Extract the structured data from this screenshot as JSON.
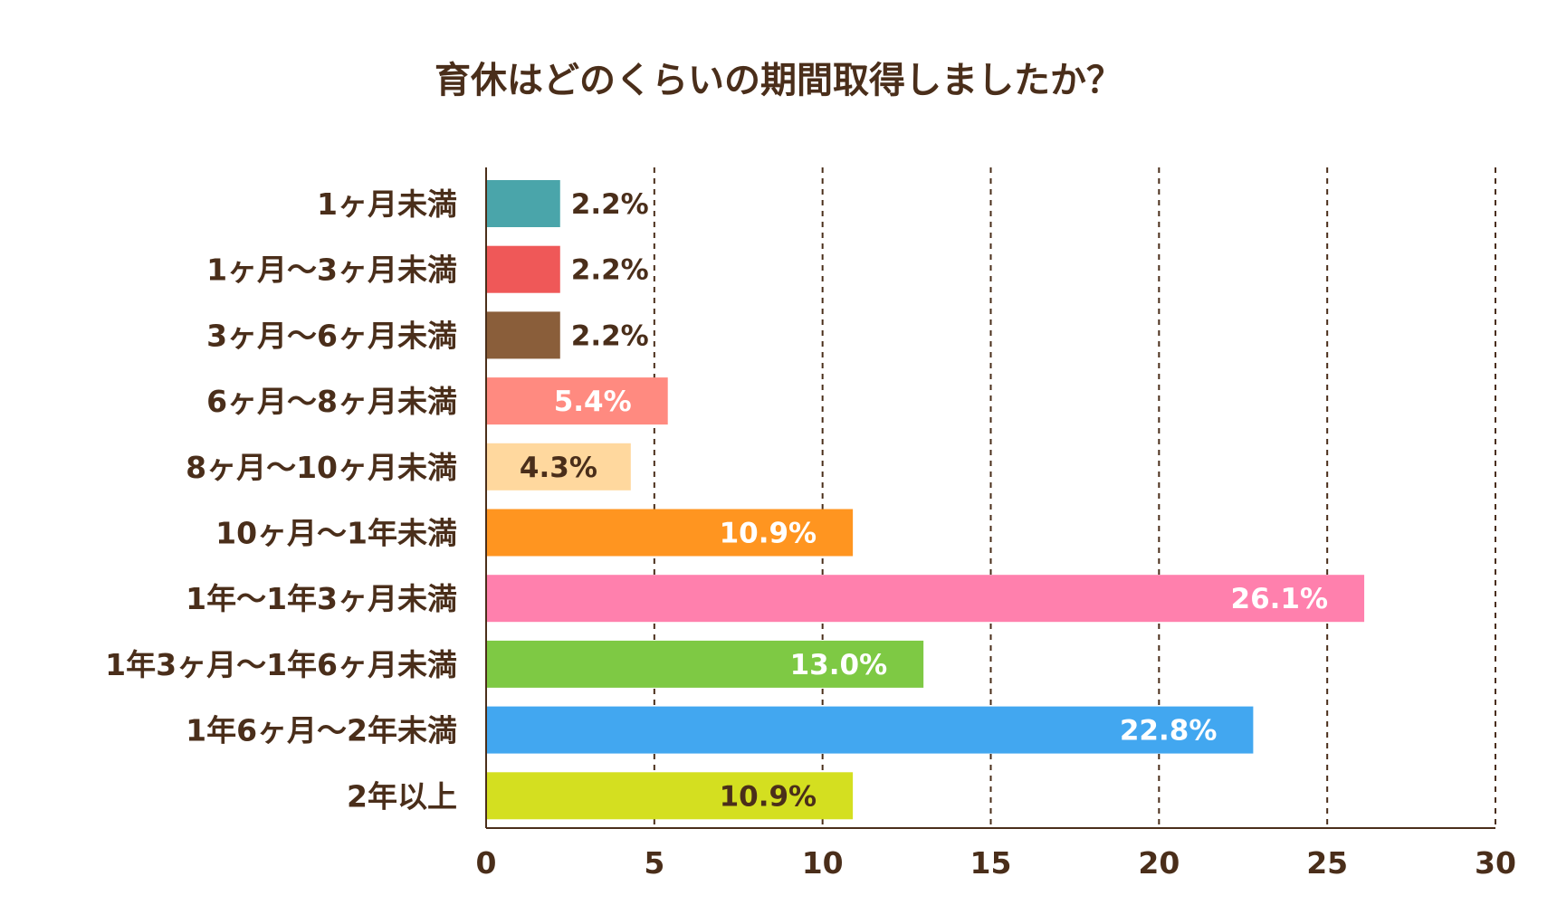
{
  "chart_data": {
    "type": "bar",
    "orientation": "horizontal",
    "title": "育休はどのくらいの期間取得しましたか？",
    "categories": [
      "1ヶ月未満",
      "1ヶ月〜3ヶ月未満",
      "3ヶ月〜6ヶ月未満",
      "6ヶ月〜8ヶ月未満",
      "8ヶ月〜10ヶ月未満",
      "10ヶ月〜1年未満",
      "1年〜1年3ヶ月未満",
      "1年3ヶ月〜1年6ヶ月未満",
      "1年6ヶ月〜2年未満",
      "2年以上"
    ],
    "values": [
      2.2,
      2.2,
      2.2,
      5.4,
      4.3,
      10.9,
      26.1,
      13.0,
      22.8,
      10.9
    ],
    "data_labels": [
      "2.2%",
      "2.2%",
      "2.2%",
      "5.4%",
      "4.3%",
      "10.9%",
      "26.1%",
      "13.0%",
      "22.8%",
      "10.9%"
    ],
    "colors": [
      "#4aa5aa",
      "#ef5858",
      "#8a5e3a",
      "#ff8a80",
      "#ffd89e",
      "#ff9520",
      "#ff80ad",
      "#7ec944",
      "#42a7f0",
      "#d4df20"
    ],
    "label_colors": [
      "#4a2e1a",
      "#4a2e1a",
      "#4a2e1a",
      "#ffffff",
      "#4a2e1a",
      "#ffffff",
      "#ffffff",
      "#ffffff",
      "#ffffff",
      "#4a2e1a"
    ],
    "xlim": [
      0,
      30
    ],
    "xticks": [
      0,
      5,
      10,
      15,
      20,
      25,
      30
    ],
    "grid": true,
    "xlabel": "",
    "ylabel": ""
  }
}
